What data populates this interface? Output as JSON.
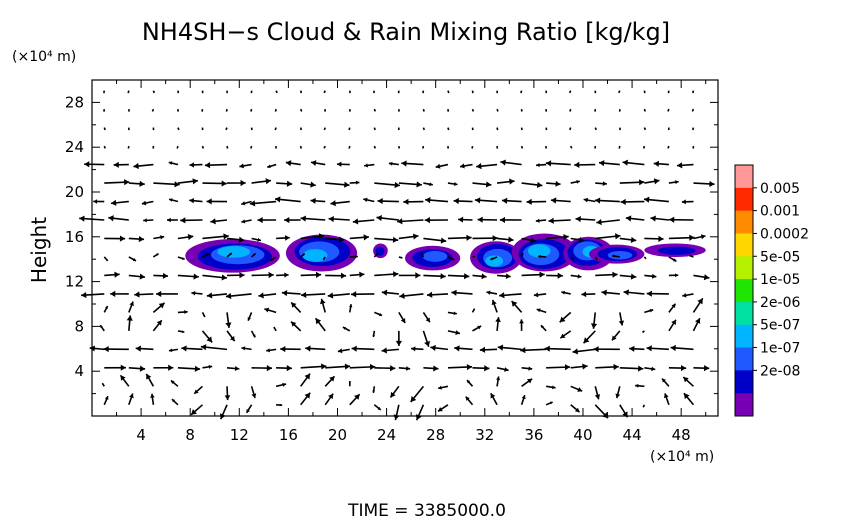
{
  "chart_data": {
    "type": "heatmap",
    "title": "NH4SH−s Cloud & Rain Mixing Ratio [kg/kg]",
    "xunit": "(×10⁴ m)",
    "yunit": "(×10⁴ m)",
    "ylabel": "Height",
    "footer": "TIME  =  3385000.0",
    "xlim": [
      0,
      51
    ],
    "ylim": [
      0,
      30
    ],
    "xticks": [
      4,
      8,
      12,
      16,
      20,
      24,
      28,
      32,
      36,
      40,
      44,
      48
    ],
    "yticks": [
      4,
      8,
      12,
      16,
      20,
      24,
      28
    ],
    "grid": false,
    "colorbar": {
      "labels": [
        "0.005",
        "0.001",
        "0.0002",
        "5e-05",
        "1e-05",
        "2e-06",
        "5e-07",
        "1e-07",
        "2e-08"
      ],
      "colors": [
        "#ff9999",
        "#ff2a00",
        "#ff8c00",
        "#ffd700",
        "#b4f000",
        "#1ee600",
        "#00e0a0",
        "#00b4ff",
        "#1e5aff",
        "#0000c8",
        "#7800b4"
      ]
    },
    "cloud_blobs": [
      {
        "x0": 7.6,
        "x1": 15.3,
        "y0": 12.8,
        "y1": 15.8,
        "peak": 0.75
      },
      {
        "x0": 15.8,
        "x1": 21.6,
        "y0": 12.9,
        "y1": 16.2,
        "peak": 0.8
      },
      {
        "x0": 22.9,
        "x1": 24.1,
        "y0": 14.1,
        "y1": 15.4,
        "peak": 0.35
      },
      {
        "x0": 25.5,
        "x1": 30.0,
        "y0": 13.0,
        "y1": 15.2,
        "peak": 0.65
      },
      {
        "x0": 30.8,
        "x1": 35.0,
        "y0": 12.7,
        "y1": 15.6,
        "peak": 0.8
      },
      {
        "x0": 34.2,
        "x1": 39.5,
        "y0": 12.9,
        "y1": 16.3,
        "peak": 0.85
      },
      {
        "x0": 38.4,
        "x1": 42.5,
        "y0": 13.0,
        "y1": 16.0,
        "peak": 0.8
      },
      {
        "x0": 40.5,
        "x1": 45.0,
        "y0": 13.6,
        "y1": 15.3,
        "peak": 0.55
      },
      {
        "x0": 45.0,
        "x1": 50.0,
        "y0": 14.2,
        "y1": 15.4,
        "peak": 0.4
      }
    ]
  }
}
